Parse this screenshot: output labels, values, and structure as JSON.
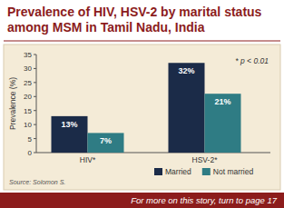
{
  "chart_data": {
    "type": "bar",
    "title": "Prevalence of HIV, HSV-2 by marital status among MSM in Tamil Nadu, India",
    "ylabel": "Prevalence (%)",
    "annotation": "* p < 0.01",
    "source": "Source: Solomon S.",
    "footer": "For more on this story, turn to page 17",
    "categories": [
      "HIV*",
      "HSV-2*"
    ],
    "series": [
      {
        "name": "Married",
        "color": "#1b2b48",
        "values": [
          13,
          32
        ],
        "value_labels": [
          "13%",
          "32%"
        ]
      },
      {
        "name": "Not married",
        "color": "#2f7c84",
        "values": [
          7,
          21
        ],
        "value_labels": [
          "7%",
          "21%"
        ]
      }
    ],
    "ylim": [
      0,
      35
    ],
    "yticks": [
      0,
      5,
      10,
      15,
      20,
      25,
      30,
      35
    ],
    "grid": false,
    "data_labels": true,
    "legend": "bottom"
  }
}
